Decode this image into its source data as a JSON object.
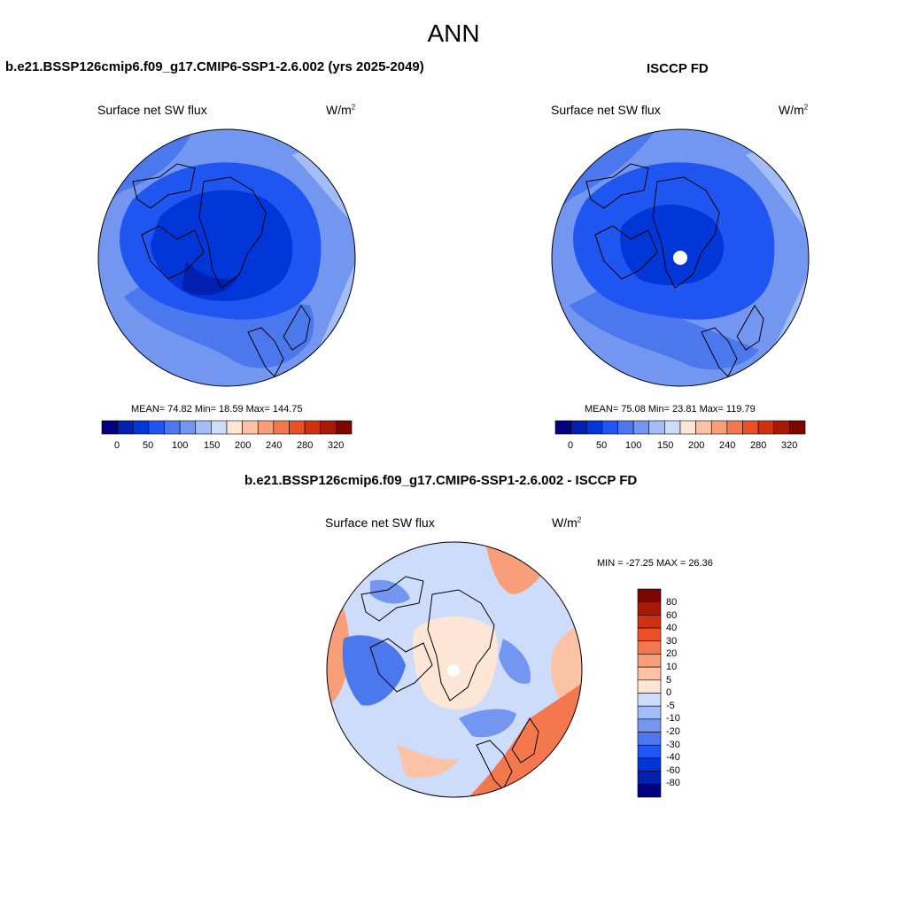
{
  "season": "ANN",
  "panels": [
    {
      "title": "b.e21.BSSP126cmip6.f09_g17.CMIP6-SSP1-2.6.002 (yrs 2025-2049)",
      "field": "Surface net SW flux",
      "units": "W/m",
      "units_sup": "2",
      "stats": "MEAN=  74.82  Min=  18.59  Max= 144.75",
      "colorbar_ticks": [
        "0",
        "50",
        "100",
        "150",
        "200",
        "240",
        "280",
        "320"
      ]
    },
    {
      "title": "ISCCP FD",
      "field": "Surface net SW flux",
      "units": "W/m",
      "units_sup": "2",
      "stats": "MEAN=  75.08  Min=  23.81  Max= 119.79",
      "colorbar_ticks": [
        "0",
        "50",
        "100",
        "150",
        "200",
        "240",
        "280",
        "320"
      ]
    },
    {
      "title": "b.e21.BSSP126cmip6.f09_g17.CMIP6-SSP1-2.6.002 - ISCCP FD",
      "field": "Surface net SW flux",
      "units": "W/m",
      "units_sup": "2",
      "stats": "MIN = -27.25 MAX =  26.36",
      "colorbar_ticks": [
        "80",
        "60",
        "40",
        "30",
        "20",
        "10",
        "5",
        "0",
        "-5",
        "-10",
        "-20",
        "-30",
        "-40",
        "-60",
        "-80"
      ]
    }
  ],
  "palettes": {
    "absolute": [
      "#000080",
      "#0020b0",
      "#0036d8",
      "#1f55f0",
      "#4c78ee",
      "#7396f0",
      "#a3bdf6",
      "#cddcfa",
      "#fde6d6",
      "#fcc2a5",
      "#f89e7a",
      "#f4784d",
      "#ec5025",
      "#cf3112",
      "#a81a06",
      "#7d0600"
    ],
    "difference": [
      "#7d0600",
      "#a81a06",
      "#cf3112",
      "#ec5025",
      "#f4784d",
      "#f89e7a",
      "#fcc2a5",
      "#fde6d6",
      "#cddcfa",
      "#a3bdf6",
      "#7396f0",
      "#4c78ee",
      "#1f55f0",
      "#0036d8",
      "#0020b0",
      "#000080"
    ]
  }
}
